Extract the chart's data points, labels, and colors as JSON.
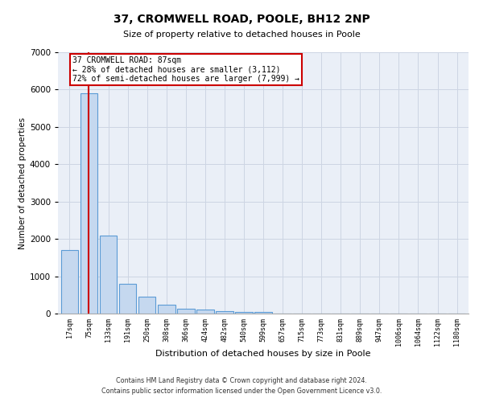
{
  "title": "37, CROMWELL ROAD, POOLE, BH12 2NP",
  "subtitle": "Size of property relative to detached houses in Poole",
  "xlabel": "Distribution of detached houses by size in Poole",
  "ylabel": "Number of detached properties",
  "bar_color": "#c5d8ef",
  "bar_edge_color": "#5b9bd5",
  "grid_color": "#cdd5e3",
  "background_color": "#eaeff7",
  "property_line_color": "#cc0000",
  "annotation_box_color": "#cc0000",
  "categories": [
    "17sqm",
    "75sqm",
    "133sqm",
    "191sqm",
    "250sqm",
    "308sqm",
    "366sqm",
    "424sqm",
    "482sqm",
    "540sqm",
    "599sqm",
    "657sqm",
    "715sqm",
    "773sqm",
    "831sqm",
    "889sqm",
    "947sqm",
    "1006sqm",
    "1064sqm",
    "1122sqm",
    "1180sqm"
  ],
  "values": [
    1700,
    5900,
    2100,
    790,
    450,
    240,
    130,
    105,
    75,
    50,
    40,
    5,
    0,
    0,
    0,
    0,
    0,
    0,
    0,
    0,
    0
  ],
  "ylim": [
    0,
    7000
  ],
  "yticks": [
    0,
    1000,
    2000,
    3000,
    4000,
    5000,
    6000,
    7000
  ],
  "property_label": "37 CROMWELL ROAD: 87sqm",
  "annotation_line1": "← 28% of detached houses are smaller (3,112)",
  "annotation_line2": "72% of semi-detached houses are larger (7,999) →",
  "property_bar_index": 1,
  "footer_line1": "Contains HM Land Registry data © Crown copyright and database right 2024.",
  "footer_line2": "Contains public sector information licensed under the Open Government Licence v3.0."
}
